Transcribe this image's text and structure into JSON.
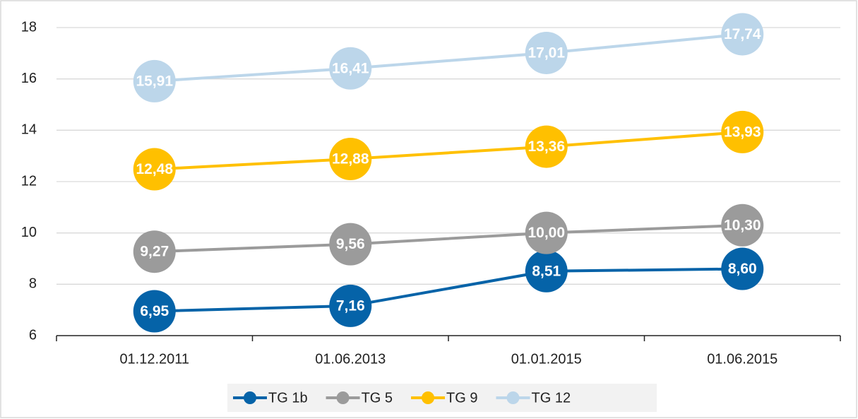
{
  "chart_data": {
    "type": "line",
    "categories": [
      "01.12.2011",
      "01.06.2013",
      "01.01.2015",
      "01.06.2015"
    ],
    "series": [
      {
        "name": "TG 1b",
        "color": "#0563a8",
        "values": [
          6.95,
          7.16,
          8.51,
          8.6
        ],
        "value_labels": [
          "6,95",
          "7,16",
          "8,51",
          "8,60"
        ]
      },
      {
        "name": "TG 5",
        "color": "#9b9b9b",
        "values": [
          9.27,
          9.56,
          10.0,
          10.3
        ],
        "value_labels": [
          "9,27",
          "9,56",
          "10,00",
          "10,30"
        ]
      },
      {
        "name": "TG 9",
        "color": "#ffc000",
        "values": [
          12.48,
          12.88,
          13.36,
          13.93
        ],
        "value_labels": [
          "12,48",
          "12,88",
          "13,36",
          "13,93"
        ]
      },
      {
        "name": "TG 12",
        "color": "#bcd6ea",
        "values": [
          15.91,
          16.41,
          17.01,
          17.74
        ],
        "value_labels": [
          "15,91",
          "16,41",
          "17,01",
          "17,74"
        ]
      }
    ],
    "ylim": [
      6,
      18
    ],
    "yticks": [
      6,
      8,
      10,
      12,
      14,
      16,
      18
    ],
    "grid": true,
    "legend": "bottom"
  }
}
